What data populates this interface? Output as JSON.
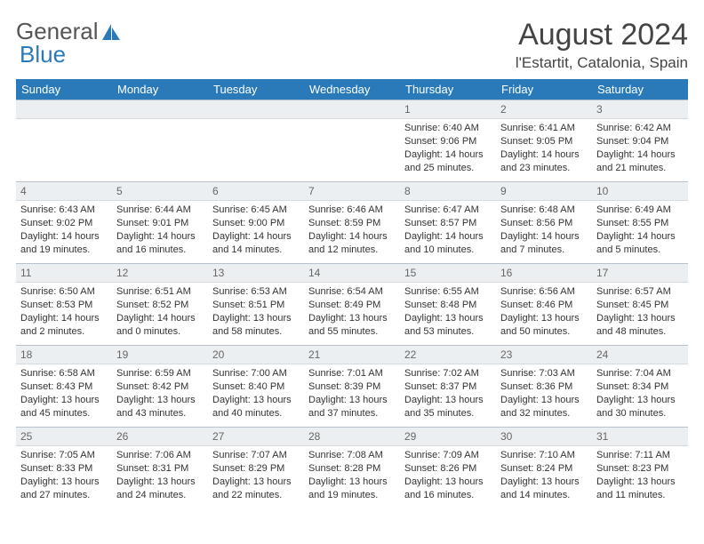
{
  "brand": {
    "part1": "General",
    "part2": "Blue"
  },
  "title": "August 2024",
  "location": "l'Estartit, Catalonia, Spain",
  "colors": {
    "header_bg": "#2a7ab9",
    "header_fg": "#ffffff",
    "daynum_bg": "#eceff1",
    "border": "#b8c2cc",
    "text": "#333333",
    "brand_gray": "#555555",
    "brand_blue": "#2a7ab9"
  },
  "weekdays": [
    "Sunday",
    "Monday",
    "Tuesday",
    "Wednesday",
    "Thursday",
    "Friday",
    "Saturday"
  ],
  "weeks": [
    [
      {
        "day": "",
        "sunrise": "",
        "sunset": "",
        "daylight": ""
      },
      {
        "day": "",
        "sunrise": "",
        "sunset": "",
        "daylight": ""
      },
      {
        "day": "",
        "sunrise": "",
        "sunset": "",
        "daylight": ""
      },
      {
        "day": "",
        "sunrise": "",
        "sunset": "",
        "daylight": ""
      },
      {
        "day": "1",
        "sunrise": "Sunrise: 6:40 AM",
        "sunset": "Sunset: 9:06 PM",
        "daylight": "Daylight: 14 hours and 25 minutes."
      },
      {
        "day": "2",
        "sunrise": "Sunrise: 6:41 AM",
        "sunset": "Sunset: 9:05 PM",
        "daylight": "Daylight: 14 hours and 23 minutes."
      },
      {
        "day": "3",
        "sunrise": "Sunrise: 6:42 AM",
        "sunset": "Sunset: 9:04 PM",
        "daylight": "Daylight: 14 hours and 21 minutes."
      }
    ],
    [
      {
        "day": "4",
        "sunrise": "Sunrise: 6:43 AM",
        "sunset": "Sunset: 9:02 PM",
        "daylight": "Daylight: 14 hours and 19 minutes."
      },
      {
        "day": "5",
        "sunrise": "Sunrise: 6:44 AM",
        "sunset": "Sunset: 9:01 PM",
        "daylight": "Daylight: 14 hours and 16 minutes."
      },
      {
        "day": "6",
        "sunrise": "Sunrise: 6:45 AM",
        "sunset": "Sunset: 9:00 PM",
        "daylight": "Daylight: 14 hours and 14 minutes."
      },
      {
        "day": "7",
        "sunrise": "Sunrise: 6:46 AM",
        "sunset": "Sunset: 8:59 PM",
        "daylight": "Daylight: 14 hours and 12 minutes."
      },
      {
        "day": "8",
        "sunrise": "Sunrise: 6:47 AM",
        "sunset": "Sunset: 8:57 PM",
        "daylight": "Daylight: 14 hours and 10 minutes."
      },
      {
        "day": "9",
        "sunrise": "Sunrise: 6:48 AM",
        "sunset": "Sunset: 8:56 PM",
        "daylight": "Daylight: 14 hours and 7 minutes."
      },
      {
        "day": "10",
        "sunrise": "Sunrise: 6:49 AM",
        "sunset": "Sunset: 8:55 PM",
        "daylight": "Daylight: 14 hours and 5 minutes."
      }
    ],
    [
      {
        "day": "11",
        "sunrise": "Sunrise: 6:50 AM",
        "sunset": "Sunset: 8:53 PM",
        "daylight": "Daylight: 14 hours and 2 minutes."
      },
      {
        "day": "12",
        "sunrise": "Sunrise: 6:51 AM",
        "sunset": "Sunset: 8:52 PM",
        "daylight": "Daylight: 14 hours and 0 minutes."
      },
      {
        "day": "13",
        "sunrise": "Sunrise: 6:53 AM",
        "sunset": "Sunset: 8:51 PM",
        "daylight": "Daylight: 13 hours and 58 minutes."
      },
      {
        "day": "14",
        "sunrise": "Sunrise: 6:54 AM",
        "sunset": "Sunset: 8:49 PM",
        "daylight": "Daylight: 13 hours and 55 minutes."
      },
      {
        "day": "15",
        "sunrise": "Sunrise: 6:55 AM",
        "sunset": "Sunset: 8:48 PM",
        "daylight": "Daylight: 13 hours and 53 minutes."
      },
      {
        "day": "16",
        "sunrise": "Sunrise: 6:56 AM",
        "sunset": "Sunset: 8:46 PM",
        "daylight": "Daylight: 13 hours and 50 minutes."
      },
      {
        "day": "17",
        "sunrise": "Sunrise: 6:57 AM",
        "sunset": "Sunset: 8:45 PM",
        "daylight": "Daylight: 13 hours and 48 minutes."
      }
    ],
    [
      {
        "day": "18",
        "sunrise": "Sunrise: 6:58 AM",
        "sunset": "Sunset: 8:43 PM",
        "daylight": "Daylight: 13 hours and 45 minutes."
      },
      {
        "day": "19",
        "sunrise": "Sunrise: 6:59 AM",
        "sunset": "Sunset: 8:42 PM",
        "daylight": "Daylight: 13 hours and 43 minutes."
      },
      {
        "day": "20",
        "sunrise": "Sunrise: 7:00 AM",
        "sunset": "Sunset: 8:40 PM",
        "daylight": "Daylight: 13 hours and 40 minutes."
      },
      {
        "day": "21",
        "sunrise": "Sunrise: 7:01 AM",
        "sunset": "Sunset: 8:39 PM",
        "daylight": "Daylight: 13 hours and 37 minutes."
      },
      {
        "day": "22",
        "sunrise": "Sunrise: 7:02 AM",
        "sunset": "Sunset: 8:37 PM",
        "daylight": "Daylight: 13 hours and 35 minutes."
      },
      {
        "day": "23",
        "sunrise": "Sunrise: 7:03 AM",
        "sunset": "Sunset: 8:36 PM",
        "daylight": "Daylight: 13 hours and 32 minutes."
      },
      {
        "day": "24",
        "sunrise": "Sunrise: 7:04 AM",
        "sunset": "Sunset: 8:34 PM",
        "daylight": "Daylight: 13 hours and 30 minutes."
      }
    ],
    [
      {
        "day": "25",
        "sunrise": "Sunrise: 7:05 AM",
        "sunset": "Sunset: 8:33 PM",
        "daylight": "Daylight: 13 hours and 27 minutes."
      },
      {
        "day": "26",
        "sunrise": "Sunrise: 7:06 AM",
        "sunset": "Sunset: 8:31 PM",
        "daylight": "Daylight: 13 hours and 24 minutes."
      },
      {
        "day": "27",
        "sunrise": "Sunrise: 7:07 AM",
        "sunset": "Sunset: 8:29 PM",
        "daylight": "Daylight: 13 hours and 22 minutes."
      },
      {
        "day": "28",
        "sunrise": "Sunrise: 7:08 AM",
        "sunset": "Sunset: 8:28 PM",
        "daylight": "Daylight: 13 hours and 19 minutes."
      },
      {
        "day": "29",
        "sunrise": "Sunrise: 7:09 AM",
        "sunset": "Sunset: 8:26 PM",
        "daylight": "Daylight: 13 hours and 16 minutes."
      },
      {
        "day": "30",
        "sunrise": "Sunrise: 7:10 AM",
        "sunset": "Sunset: 8:24 PM",
        "daylight": "Daylight: 13 hours and 14 minutes."
      },
      {
        "day": "31",
        "sunrise": "Sunrise: 7:11 AM",
        "sunset": "Sunset: 8:23 PM",
        "daylight": "Daylight: 13 hours and 11 minutes."
      }
    ]
  ]
}
